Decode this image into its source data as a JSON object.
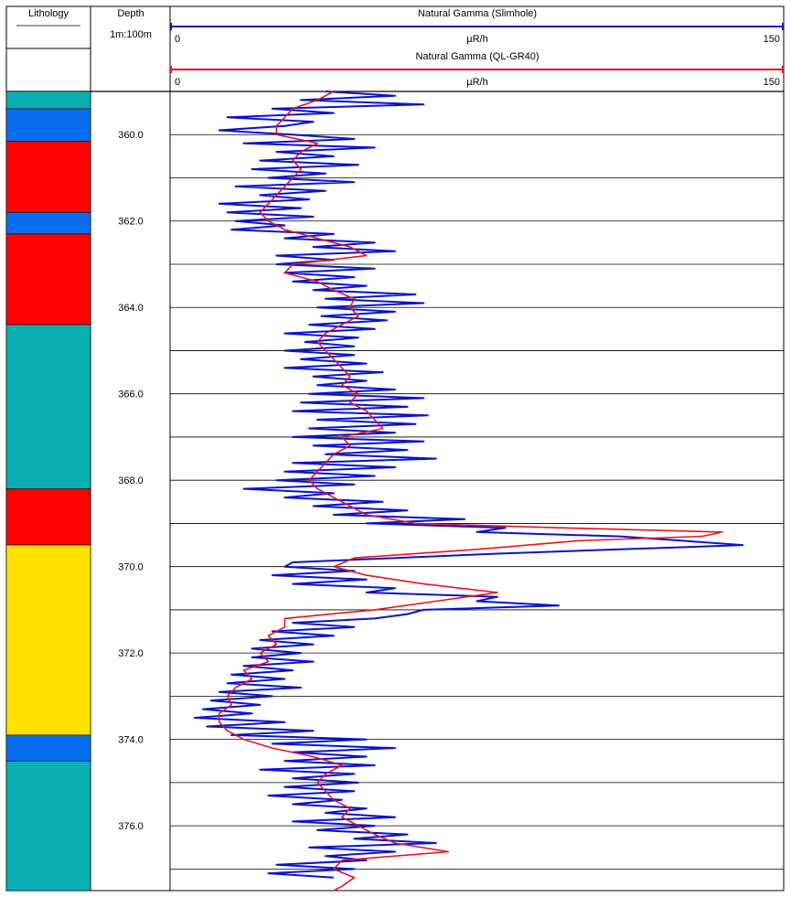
{
  "header": {
    "lithology_label": "Lithology",
    "depth_label": "Depth",
    "scale_label": "1m:100m"
  },
  "chart_data": {
    "type": "line",
    "title": "",
    "depth_axis": {
      "range": [
        359.0,
        377.5
      ],
      "ticks": [
        "360.0",
        "362.0",
        "364.0",
        "366.0",
        "368.0",
        "370.0",
        "372.0",
        "374.0",
        "376.0"
      ],
      "tick_values": [
        360,
        362,
        364,
        366,
        368,
        370,
        372,
        374,
        376
      ],
      "gridline_depths": [
        360,
        361,
        362,
        363,
        364,
        365,
        366,
        367,
        368,
        369,
        370,
        371,
        372,
        373,
        374,
        375,
        376,
        377
      ]
    },
    "tracks": [
      {
        "name": "Natural Gamma (Slimhole)",
        "unit": "µR/h",
        "min_label": "0",
        "max_label": "150",
        "range": [
          0,
          150
        ],
        "color": "#0a14c8"
      },
      {
        "name": "Natural Gamma (QL-GR40)",
        "unit": "µR/h",
        "min_label": "0",
        "max_label": "150",
        "range": [
          0,
          150
        ],
        "color": "#e8141e"
      }
    ],
    "lithology": [
      {
        "top": 359.0,
        "bottom": 359.4,
        "color": "#0aafb4"
      },
      {
        "top": 359.4,
        "bottom": 360.15,
        "color": "#0a6ef0"
      },
      {
        "top": 360.15,
        "bottom": 361.8,
        "color": "#ff0000"
      },
      {
        "top": 361.8,
        "bottom": 362.3,
        "color": "#0a6ef0"
      },
      {
        "top": 362.3,
        "bottom": 364.4,
        "color": "#ff0000"
      },
      {
        "top": 364.4,
        "bottom": 368.2,
        "color": "#0aafb4"
      },
      {
        "top": 368.2,
        "bottom": 369.5,
        "color": "#ff0000"
      },
      {
        "top": 369.5,
        "bottom": 373.9,
        "color": "#ffe100"
      },
      {
        "top": 373.9,
        "bottom": 374.5,
        "color": "#0a6ef0"
      },
      {
        "top": 374.5,
        "bottom": 377.5,
        "color": "#0aafb4"
      }
    ],
    "series": [
      {
        "name": "Natural Gamma (Slimhole)",
        "color": "#0a14c8",
        "depth": [
          359.0,
          359.1,
          359.2,
          359.3,
          359.4,
          359.5,
          359.6,
          359.7,
          359.8,
          359.9,
          360.0,
          360.1,
          360.2,
          360.3,
          360.4,
          360.5,
          360.6,
          360.7,
          360.8,
          360.9,
          361.0,
          361.1,
          361.2,
          361.3,
          361.4,
          361.5,
          361.6,
          361.7,
          361.8,
          361.9,
          362.0,
          362.1,
          362.2,
          362.3,
          362.4,
          362.5,
          362.6,
          362.7,
          362.8,
          362.9,
          363.0,
          363.1,
          363.2,
          363.3,
          363.4,
          363.5,
          363.6,
          363.7,
          363.8,
          363.9,
          364.0,
          364.1,
          364.2,
          364.3,
          364.4,
          364.5,
          364.6,
          364.7,
          364.8,
          364.9,
          365.0,
          365.1,
          365.2,
          365.3,
          365.4,
          365.5,
          365.6,
          365.7,
          365.8,
          365.9,
          366.0,
          366.1,
          366.2,
          366.3,
          366.4,
          366.5,
          366.6,
          366.7,
          366.8,
          366.9,
          367.0,
          367.1,
          367.2,
          367.3,
          367.4,
          367.5,
          367.6,
          367.7,
          367.8,
          367.9,
          368.0,
          368.1,
          368.2,
          368.3,
          368.4,
          368.5,
          368.6,
          368.7,
          368.8,
          368.9,
          369.0,
          369.1,
          369.2,
          369.3,
          369.4,
          369.5,
          369.6,
          369.7,
          369.8,
          369.9,
          370.0,
          370.1,
          370.2,
          370.3,
          370.4,
          370.5,
          370.6,
          370.7,
          370.8,
          370.9,
          371.0,
          371.1,
          371.2,
          371.3,
          371.4,
          371.5,
          371.6,
          371.7,
          371.8,
          371.9,
          372.0,
          372.1,
          372.2,
          372.3,
          372.4,
          372.5,
          372.6,
          372.7,
          372.8,
          372.9,
          373.0,
          373.1,
          373.2,
          373.3,
          373.4,
          373.5,
          373.6,
          373.7,
          373.8,
          373.9,
          374.0,
          374.1,
          374.2,
          374.3,
          374.4,
          374.5,
          374.6,
          374.7,
          374.8,
          374.9,
          375.0,
          375.1,
          375.2,
          375.3,
          375.4,
          375.5,
          375.6,
          375.7,
          375.8,
          375.9,
          376.0,
          376.1,
          376.2,
          376.3,
          376.4,
          376.5,
          376.6,
          376.7,
          376.8,
          376.9,
          377.0,
          377.1,
          377.2,
          377.3,
          377.4,
          377.5
        ],
        "values": [
          38,
          55,
          32,
          62,
          25,
          40,
          14,
          35,
          28,
          12,
          30,
          45,
          18,
          50,
          26,
          40,
          22,
          46,
          20,
          38,
          24,
          45,
          16,
          38,
          22,
          34,
          12,
          32,
          14,
          35,
          16,
          28,
          15,
          40,
          28,
          50,
          35,
          55,
          26,
          40,
          26,
          50,
          28,
          45,
          30,
          48,
          35,
          60,
          38,
          62,
          36,
          55,
          37,
          53,
          34,
          50,
          28,
          46,
          33,
          45,
          28,
          45,
          32,
          48,
          28,
          52,
          35,
          48,
          36,
          55,
          34,
          62,
          32,
          58,
          30,
          63,
          36,
          60,
          34,
          55,
          30,
          62,
          35,
          58,
          38,
          65,
          30,
          55,
          28,
          50,
          26,
          45,
          18,
          40,
          28,
          52,
          35,
          58,
          40,
          72,
          48,
          82,
          75,
          110,
          125,
          140,
          110,
          80,
          55,
          30,
          28,
          45,
          25,
          48,
          30,
          55,
          48,
          80,
          75,
          95,
          62,
          58,
          50,
          30,
          45,
          25,
          40,
          22,
          35,
          20,
          32,
          20,
          35,
          18,
          30,
          15,
          28,
          14,
          32,
          12,
          25,
          10,
          22,
          8,
          20,
          6,
          28,
          9,
          35,
          15,
          48,
          25,
          55,
          30,
          48,
          28,
          50,
          22,
          45,
          30,
          46,
          28,
          45,
          24,
          42,
          30,
          48,
          38,
          55,
          30,
          50,
          36,
          58,
          45,
          65,
          34,
          55,
          38,
          48,
          26,
          45,
          24,
          40
        ]
      },
      {
        "name": "Natural Gamma (QL-GR40)",
        "color": "#e8141e",
        "depth": [
          359.0,
          359.2,
          359.4,
          359.6,
          359.8,
          360.0,
          360.2,
          360.4,
          360.6,
          360.8,
          361.0,
          361.2,
          361.4,
          361.6,
          361.8,
          362.0,
          362.2,
          362.4,
          362.6,
          362.8,
          363.0,
          363.2,
          363.4,
          363.6,
          363.8,
          364.0,
          364.2,
          364.4,
          364.6,
          364.8,
          365.0,
          365.2,
          365.4,
          365.6,
          365.8,
          366.0,
          366.2,
          366.4,
          366.6,
          366.8,
          367.0,
          367.2,
          367.4,
          367.6,
          367.8,
          368.0,
          368.2,
          368.4,
          368.6,
          368.8,
          369.0,
          369.1,
          369.2,
          369.3,
          369.4,
          369.6,
          369.8,
          370.0,
          370.2,
          370.4,
          370.6,
          370.8,
          371.0,
          371.2,
          371.4,
          371.6,
          371.8,
          372.0,
          372.2,
          372.4,
          372.6,
          372.8,
          373.0,
          373.2,
          373.4,
          373.6,
          373.8,
          374.0,
          374.2,
          374.4,
          374.6,
          374.8,
          375.0,
          375.2,
          375.4,
          375.6,
          375.8,
          376.0,
          376.2,
          376.4,
          376.6,
          376.8,
          377.0,
          377.2,
          377.4,
          377.5
        ],
        "values": [
          40,
          36,
          30,
          28,
          26,
          26,
          36,
          32,
          30,
          32,
          30,
          28,
          26,
          24,
          22,
          24,
          28,
          36,
          44,
          48,
          30,
          28,
          36,
          40,
          45,
          44,
          46,
          42,
          38,
          36,
          38,
          40,
          42,
          44,
          42,
          46,
          44,
          48,
          50,
          52,
          42,
          44,
          40,
          38,
          36,
          34,
          36,
          40,
          44,
          48,
          60,
          95,
          135,
          130,
          100,
          75,
          45,
          40,
          48,
          62,
          80,
          65,
          50,
          28,
          28,
          24,
          26,
          22,
          24,
          18,
          20,
          16,
          14,
          15,
          12,
          12,
          14,
          18,
          25,
          35,
          42,
          38,
          36,
          38,
          40,
          44,
          42,
          46,
          50,
          55,
          68,
          42,
          40,
          45,
          42,
          40
        ]
      }
    ]
  }
}
